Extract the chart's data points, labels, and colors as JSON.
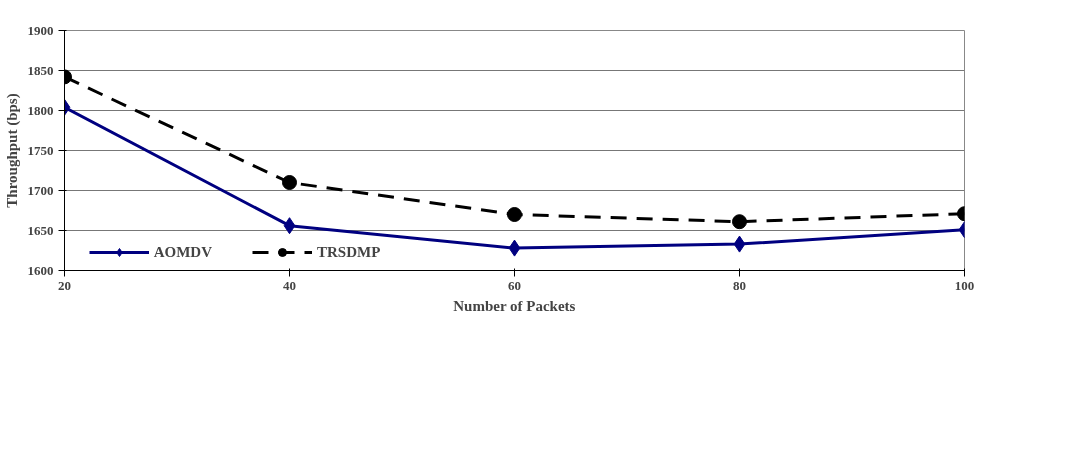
{
  "chart_data": {
    "type": "line",
    "xlabel": "Number of Packets",
    "ylabel": "Throughput (bps)",
    "x": [
      20,
      40,
      60,
      80,
      100
    ],
    "xlim": [
      20,
      100
    ],
    "xticks": [
      20,
      40,
      60,
      80,
      100
    ],
    "ylim": [
      1600,
      1900
    ],
    "yticks": [
      1600,
      1650,
      1700,
      1750,
      1800,
      1850,
      1900
    ],
    "grid": "y",
    "legend": "bottom left",
    "series": [
      {
        "name": "AOMDV",
        "color": "#000080",
        "values": [
          1804,
          1656,
          1628,
          1633,
          1651
        ],
        "marker": "diamond",
        "line_style": "solid"
      },
      {
        "name": "TRSDMP",
        "color": "#000000",
        "values": [
          1842,
          1710,
          1670,
          1661,
          1671
        ],
        "marker": "circle",
        "line_style": "dashed"
      }
    ]
  }
}
